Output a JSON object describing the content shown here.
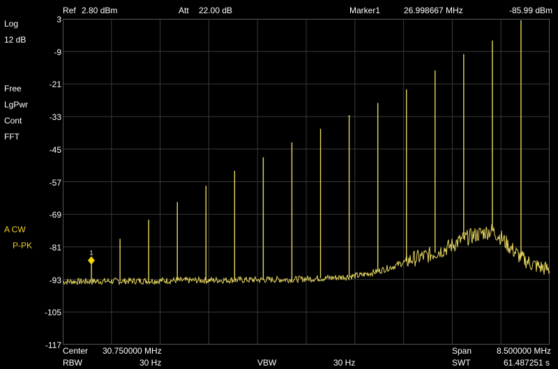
{
  "header": {
    "ref_label": "Ref",
    "ref_value": "2.80 dBm",
    "att_label": "Att",
    "att_value": "22.00 dB",
    "marker_label": "Marker1",
    "marker_freq": "26.998667 MHz",
    "marker_level": "-85.99 dBm"
  },
  "left_panel": {
    "scale_mode": "Log",
    "scale_div": "12 dB",
    "trigger": "Free",
    "detector_avg": "LgPwr",
    "sweep_mode": "Cont",
    "sweep_type": "FFT",
    "trace_mode": "A CW",
    "trace_det": "P-PK"
  },
  "footer": {
    "center_label": "Center",
    "center_value": "30.750000 MHz",
    "span_label": "Span",
    "span_value": "8.500000 MHz",
    "rbw_label": "RBW",
    "rbw_value": "30 Hz",
    "vbw_label": "VBW",
    "vbw_value": "30 Hz",
    "swt_label": "SWT",
    "swt_value": "61.487251 s"
  },
  "marker": {
    "id": "1",
    "freq_mhz": 26.998667,
    "level_dbm": -85.99
  },
  "colors": {
    "trace": "#e8d860",
    "marker": "#f5d800",
    "grid": "#3a3a3a",
    "background": "#000000",
    "text": "#ffffff"
  },
  "chart_data": {
    "type": "line",
    "x_unit": "MHz",
    "y_unit": "dBm",
    "xlim": [
      26.5,
      35.0
    ],
    "ylim": [
      -117,
      3
    ],
    "y_ticks": [
      "3",
      "-9",
      "-21",
      "-33",
      "-45",
      "-57",
      "-69",
      "-81",
      "-93",
      "-105",
      "-117"
    ],
    "grid": true,
    "noise_floor": [
      [
        26.5,
        -93.8
      ],
      [
        27.5,
        -93.6
      ],
      [
        28.5,
        -93.4
      ],
      [
        29.5,
        -93.2
      ],
      [
        30.5,
        -93.0
      ],
      [
        31.3,
        -92.3
      ],
      [
        31.7,
        -91.5
      ],
      [
        32.0,
        -90.0
      ],
      [
        32.3,
        -88.0
      ],
      [
        32.6,
        -85.5
      ],
      [
        32.9,
        -84.0
      ],
      [
        33.2,
        -81.5
      ],
      [
        33.5,
        -78.0
      ],
      [
        33.8,
        -76.0
      ],
      [
        34.0,
        -75.0
      ],
      [
        34.15,
        -77.5
      ],
      [
        34.3,
        -81.0
      ],
      [
        34.5,
        -85.0
      ],
      [
        34.7,
        -87.5
      ],
      [
        35.0,
        -89.5
      ]
    ],
    "peaks": [
      {
        "freq": 27.0,
        "level": -85.99
      },
      {
        "freq": 27.5,
        "level": -78.0
      },
      {
        "freq": 28.0,
        "level": -71.0
      },
      {
        "freq": 28.5,
        "level": -64.5
      },
      {
        "freq": 29.0,
        "level": -58.5
      },
      {
        "freq": 29.5,
        "level": -53.0
      },
      {
        "freq": 30.0,
        "level": -48.0
      },
      {
        "freq": 30.5,
        "level": -42.5
      },
      {
        "freq": 31.0,
        "level": -37.5
      },
      {
        "freq": 31.5,
        "level": -32.5
      },
      {
        "freq": 32.0,
        "level": -28.0
      },
      {
        "freq": 32.5,
        "level": -23.0
      },
      {
        "freq": 33.0,
        "level": -16.0
      },
      {
        "freq": 33.5,
        "level": -10.0
      },
      {
        "freq": 34.0,
        "level": -5.0
      },
      {
        "freq": 34.5,
        "level": 2.5
      }
    ]
  }
}
